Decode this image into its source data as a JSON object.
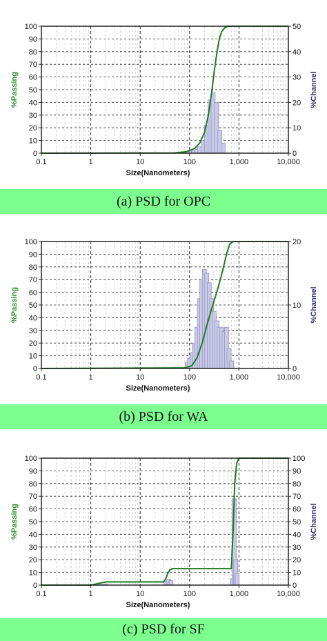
{
  "colors": {
    "cumulative_line": "#1e7a1e",
    "bar_fill": "#c9cbe6",
    "bar_stroke": "#8a8cbf",
    "caption_bg": "#7dff8f",
    "left_axis_label": "#2b8a2b",
    "right_axis_label": "#2b2b7a"
  },
  "chart_data": [
    {
      "type": "bar+line",
      "caption": "(a) PSD for OPC",
      "xlabel": "Size(Nanometers)",
      "ylabel_left": "%Passing",
      "ylabel_right": "%Channel",
      "xscale": "log",
      "xlim": [
        0.1,
        10000
      ],
      "x_ticks": [
        "0.1",
        "1",
        "10",
        "100",
        "1,000",
        "10,000"
      ],
      "ylim_left": [
        0,
        100
      ],
      "y_ticks_left": [
        "0",
        "10",
        "20",
        "30",
        "40",
        "50",
        "60",
        "70",
        "80",
        "90",
        "100"
      ],
      "ylim_right": [
        0,
        50
      ],
      "y_ticks_right": [
        "0",
        "10",
        "20",
        "30",
        "40",
        "50"
      ],
      "grid": true,
      "series": [
        {
          "kind": "line",
          "x": [
            0.1,
            50,
            80,
            100,
            130,
            160,
            200,
            240,
            280,
            320,
            360,
            400,
            450,
            520,
            600,
            10000
          ],
          "y": [
            0,
            0.2,
            1,
            2,
            4,
            8,
            16,
            30,
            48,
            66,
            80,
            90,
            96,
            99,
            100,
            100
          ]
        },
        {
          "kind": "bar",
          "x": [
            80,
            100,
            120,
            140,
            160,
            190,
            220,
            260,
            300,
            350,
            410,
            480
          ],
          "y": [
            0.3,
            0.6,
            1,
            1.5,
            2.5,
            5,
            11,
            21,
            24,
            20,
            9,
            4
          ]
        }
      ]
    },
    {
      "type": "bar+line",
      "caption": "(b) PSD for WA",
      "xlabel": "Size(Nanometers)",
      "ylabel_left": "%Passing",
      "ylabel_right": "%Channel",
      "xscale": "log",
      "xlim": [
        0.1,
        10000
      ],
      "x_ticks": [
        "0.1",
        "1",
        "10",
        "100",
        "1,000",
        "10,000"
      ],
      "ylim_left": [
        0,
        100
      ],
      "y_ticks_left": [
        "0",
        "10",
        "20",
        "30",
        "40",
        "50",
        "60",
        "70",
        "80",
        "90",
        "100"
      ],
      "ylim_right": [
        0,
        20
      ],
      "y_ticks_right": [
        "0",
        "10",
        "20"
      ],
      "grid": true,
      "series": [
        {
          "kind": "line",
          "x": [
            0.1,
            80,
            110,
            140,
            180,
            220,
            270,
            330,
            400,
            480,
            560,
            650,
            760,
            10000
          ],
          "y": [
            0,
            0.5,
            2,
            8,
            20,
            33,
            45,
            56,
            67,
            79,
            90,
            98,
            100,
            100
          ]
        },
        {
          "kind": "bar",
          "x": [
            90,
            100,
            112,
            125,
            140,
            158,
            177,
            199,
            223,
            250,
            281,
            315,
            354,
            397,
            446,
            500,
            561,
            630,
            707
          ],
          "y": [
            1,
            1.6,
            2.5,
            4,
            6.5,
            11,
            14,
            15.6,
            15,
            13.5,
            11,
            9,
            7.5,
            6.5,
            6.5,
            5.8,
            6.5,
            3.2,
            1.2
          ]
        }
      ]
    },
    {
      "type": "bar+line",
      "caption": "(c) PSD for SF",
      "xlabel": "Size(Nanometers)",
      "ylabel_left": "%Passing",
      "ylabel_right": "%Channel",
      "xscale": "log",
      "xlim": [
        0.1,
        10000
      ],
      "x_ticks": [
        "0.1",
        "1",
        "10",
        "100",
        "1,000",
        "10,000"
      ],
      "ylim_left": [
        0,
        100
      ],
      "y_ticks_left": [
        "0",
        "10",
        "20",
        "30",
        "40",
        "50",
        "60",
        "70",
        "80",
        "90",
        "100"
      ],
      "ylim_right": [
        0,
        100
      ],
      "y_ticks_right": [
        "0",
        "10",
        "20",
        "30",
        "40",
        "50",
        "60",
        "70",
        "80",
        "90",
        "100"
      ],
      "grid": true,
      "series": [
        {
          "kind": "line",
          "x": [
            0.1,
            1,
            1.5,
            2,
            30,
            33,
            36,
            40,
            45,
            200,
            700,
            760,
            820,
            900,
            1000,
            10000
          ],
          "y": [
            0,
            0,
            1.5,
            2.5,
            2.5,
            5,
            9,
            12,
            13,
            13,
            13,
            42,
            80,
            96,
            100,
            100
          ]
        },
        {
          "kind": "bar",
          "x": [
            1.6,
            2,
            33,
            38,
            42,
            740,
            800,
            860,
            920
          ],
          "y": [
            0.6,
            1,
            3,
            4.5,
            3.5,
            5,
            68,
            20,
            9
          ]
        }
      ]
    }
  ]
}
